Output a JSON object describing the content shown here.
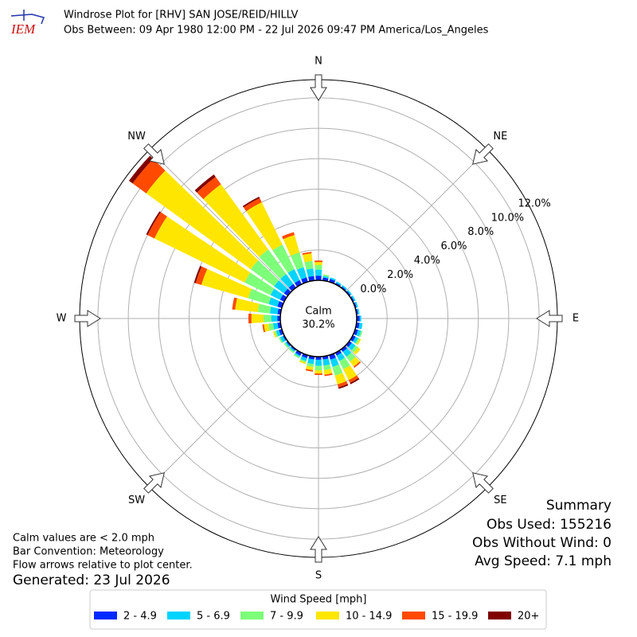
{
  "chart_data": {
    "type": "windrose",
    "title": "Windrose Plot for [RHV] SAN JOSE/REID/HILLV",
    "subtitle": "Obs Between: 09 Apr 1980 12:00 PM - 22 Jul 2026 09:47 PM America/Los_Angeles",
    "logo_text": "IEM",
    "compass_labels": [
      "N",
      "NE",
      "E",
      "SE",
      "S",
      "SW",
      "W",
      "NW"
    ],
    "rlim": [
      0,
      13.2
    ],
    "rticks": [
      {
        "value": 0,
        "label": "0.0%"
      },
      {
        "value": 2,
        "label": "2.0%"
      },
      {
        "value": 4,
        "label": "4.0%"
      },
      {
        "value": 6,
        "label": "6.0%"
      },
      {
        "value": 8,
        "label": "8.0%"
      },
      {
        "value": 10,
        "label": "10.0%"
      },
      {
        "value": 12,
        "label": "12.0%"
      }
    ],
    "calm": {
      "label": "Calm",
      "value": 30.2,
      "value_label": "30.2%"
    },
    "directions": [
      10,
      20,
      30,
      40,
      50,
      60,
      70,
      80,
      90,
      100,
      110,
      120,
      130,
      140,
      150,
      160,
      170,
      180,
      190,
      200,
      210,
      220,
      230,
      240,
      250,
      260,
      270,
      280,
      290,
      300,
      310,
      320,
      330,
      340,
      350,
      360
    ],
    "legend_title": "Wind Speed [mph]",
    "series": [
      {
        "name": "2 - 4.9",
        "color": "#0029ff",
        "values": [
          0.2,
          0.2,
          0.1,
          0.1,
          0.1,
          0.1,
          0.1,
          0.1,
          0.2,
          0.2,
          0.2,
          0.2,
          0.2,
          0.2,
          0.2,
          0.3,
          0.2,
          0.2,
          0.2,
          0.2,
          0.2,
          0.1,
          0.1,
          0.1,
          0.2,
          0.2,
          0.2,
          0.2,
          0.3,
          0.3,
          0.3,
          0.3,
          0.3,
          0.3,
          0.3,
          0.3
        ]
      },
      {
        "name": "5 - 6.9",
        "color": "#00d4ff",
        "values": [
          0.1,
          0.1,
          0.1,
          0.1,
          0.1,
          0.1,
          0.1,
          0.1,
          0.1,
          0.2,
          0.2,
          0.2,
          0.3,
          0.4,
          0.4,
          0.5,
          0.4,
          0.4,
          0.3,
          0.2,
          0.1,
          0.1,
          0.1,
          0.2,
          0.2,
          0.3,
          0.4,
          0.5,
          0.6,
          0.7,
          0.8,
          0.8,
          0.8,
          0.7,
          0.5,
          0.4
        ]
      },
      {
        "name": "7 - 9.9",
        "color": "#7dff7a",
        "values": [
          0.1,
          0,
          0,
          0,
          0,
          0,
          0,
          0,
          0,
          0,
          0.1,
          0.1,
          0.2,
          0.4,
          0.6,
          0.6,
          0.3,
          0.3,
          0.2,
          0.1,
          0.1,
          0.1,
          0.1,
          0.1,
          0.1,
          0.3,
          0.5,
          0.8,
          1.4,
          1.9,
          1.9,
          2.0,
          1.8,
          1.0,
          0.5,
          0.3
        ]
      },
      {
        "name": "10 - 14.9",
        "color": "#ffe600",
        "values": [
          0,
          0,
          0,
          0,
          0,
          0,
          0,
          0,
          0,
          0,
          0,
          0.1,
          0.2,
          0.4,
          0.8,
          0.6,
          0.3,
          0.2,
          0.2,
          0.1,
          0,
          0,
          0,
          0,
          0.1,
          0.3,
          0.8,
          1.5,
          3.2,
          6.6,
          8.5,
          5.3,
          3.1,
          1.2,
          0.5,
          0.2
        ]
      },
      {
        "name": "15 - 19.9",
        "color": "#ff4a00",
        "values": [
          0,
          0,
          0,
          0,
          0,
          0,
          0,
          0,
          0,
          0,
          0,
          0,
          0,
          0.1,
          0.2,
          0.2,
          0.1,
          0.1,
          0.1,
          0,
          0,
          0,
          0,
          0,
          0,
          0.1,
          0.2,
          0.2,
          0.4,
          0.5,
          1.1,
          0.6,
          0.3,
          0.2,
          0.1,
          0.1
        ]
      },
      {
        "name": "20+",
        "color": "#800000",
        "values": [
          0,
          0,
          0,
          0,
          0,
          0,
          0,
          0,
          0,
          0,
          0,
          0,
          0,
          0,
          0.1,
          0.1,
          0,
          0,
          0,
          0,
          0,
          0,
          0,
          0,
          0,
          0,
          0,
          0,
          0.1,
          0.1,
          0.3,
          0.2,
          0.1,
          0,
          0,
          0
        ]
      }
    ],
    "notes": [
      "Calm values are < 2.0 mph",
      "Bar Convention: Meteorology",
      "Flow arrows relative to plot center."
    ],
    "generated": "Generated: 23 Jul 2026",
    "summary": [
      "Summary",
      "Obs Used: 155216",
      "Obs Without Wind: 0",
      "Avg Speed: 7.1 mph"
    ]
  }
}
